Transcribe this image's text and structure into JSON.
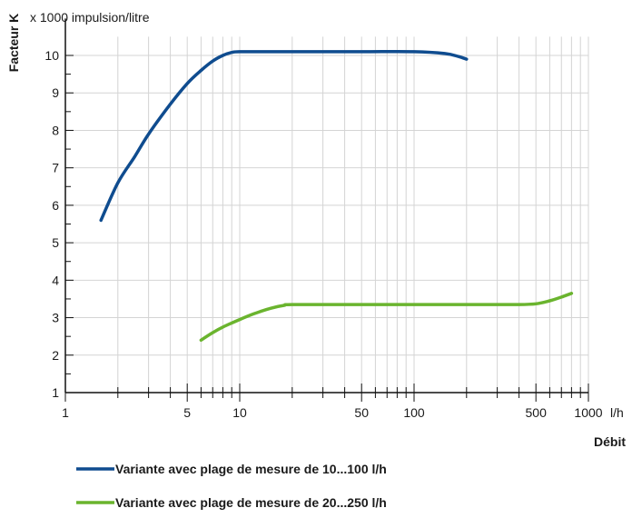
{
  "chart_data": {
    "type": "line",
    "ylabel": "Facteur K",
    "yunit": "x 1000 impulsion/litre",
    "xlabel": "Débit",
    "xunit": "l/h",
    "xscale": "log",
    "xlim": [
      1,
      1000
    ],
    "ylim": [
      1,
      10.5
    ],
    "grid": true,
    "x_ticks": [
      "1",
      "5",
      "10",
      "50",
      "100",
      "500",
      "1000"
    ],
    "x_tick_values": [
      1,
      5,
      10,
      50,
      100,
      500,
      1000
    ],
    "y_ticks": [
      "1",
      "2",
      "3",
      "4",
      "5",
      "6",
      "7",
      "8",
      "9",
      "10"
    ],
    "legend_position": "bottom",
    "series": [
      {
        "name": "Variante avec plage de mesure de 10...100 l/h",
        "color": "#0f4c8f",
        "x": [
          1.6,
          2,
          2.5,
          3,
          4,
          5,
          6,
          7,
          8,
          9,
          10,
          15,
          20,
          50,
          100,
          150,
          180,
          200
        ],
        "y": [
          5.6,
          6.6,
          7.3,
          7.9,
          8.7,
          9.25,
          9.6,
          9.85,
          10.0,
          10.08,
          10.1,
          10.1,
          10.1,
          10.1,
          10.1,
          10.05,
          9.97,
          9.9
        ]
      },
      {
        "name": "Variante avec plage de mesure de 20...250 l/h",
        "color": "#6ab42e",
        "x": [
          6,
          7,
          8,
          10,
          12,
          15,
          18,
          20,
          50,
          100,
          200,
          400,
          500,
          600,
          700,
          800
        ],
        "y": [
          2.4,
          2.6,
          2.75,
          2.95,
          3.1,
          3.25,
          3.33,
          3.35,
          3.35,
          3.35,
          3.35,
          3.35,
          3.37,
          3.45,
          3.55,
          3.65
        ]
      }
    ]
  }
}
